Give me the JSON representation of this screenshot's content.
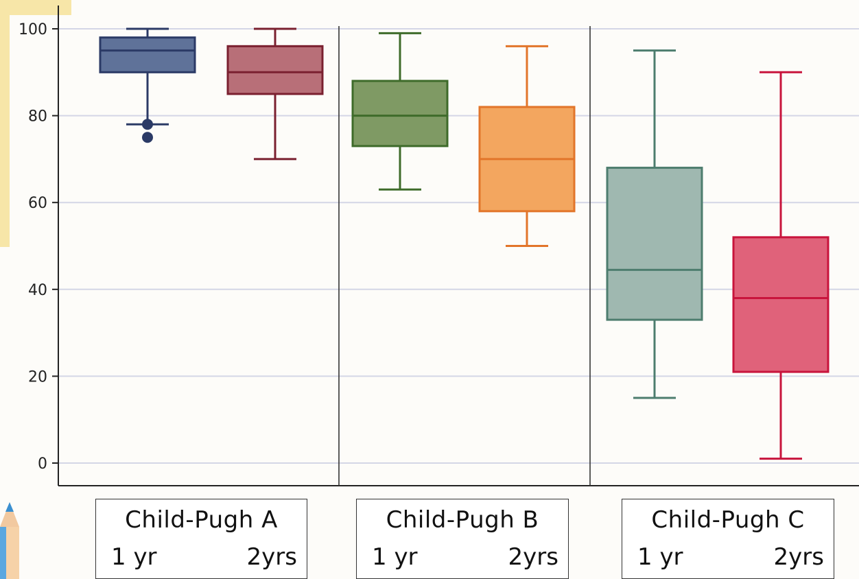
{
  "chart_data": {
    "type": "box",
    "ylim": [
      -5,
      105
    ],
    "yticks": [
      0,
      20,
      40,
      60,
      80,
      100
    ],
    "grid": true,
    "groups": [
      {
        "name": "Child-Pugh A",
        "sub_labels": [
          "1 yr",
          "2yrs"
        ]
      },
      {
        "name": "Child-Pugh B",
        "sub_labels": [
          "1 yr",
          "2yrs"
        ]
      },
      {
        "name": "Child-Pugh C",
        "sub_labels": [
          "1 yr",
          "2yrs"
        ]
      }
    ],
    "series": [
      {
        "group": "Child-Pugh A",
        "label": "1 yr",
        "whisker_low": 78,
        "q1": 90,
        "median": 95,
        "q3": 98,
        "whisker_high": 100,
        "outliers": [
          78,
          75
        ],
        "fill": "#5f7299",
        "stroke": "#2b3a66"
      },
      {
        "group": "Child-Pugh A",
        "label": "2yrs",
        "whisker_low": 70,
        "q1": 85,
        "median": 90,
        "q3": 96,
        "whisker_high": 100,
        "outliers": [],
        "fill": "#b86f78",
        "stroke": "#7a2030"
      },
      {
        "group": "Child-Pugh B",
        "label": "1 yr",
        "whisker_low": 63,
        "q1": 73,
        "median": 80,
        "q3": 88,
        "whisker_high": 99,
        "outliers": [],
        "fill": "#7f9a64",
        "stroke": "#3e6b2a"
      },
      {
        "group": "Child-Pugh B",
        "label": "2yrs",
        "whisker_low": 50,
        "q1": 58,
        "median": 70,
        "q3": 82,
        "whisker_high": 96,
        "outliers": [],
        "fill": "#f3a65f",
        "stroke": "#e2752a"
      },
      {
        "group": "Child-Pugh C",
        "label": "1 yr",
        "whisker_low": 15,
        "q1": 33,
        "median": 44.5,
        "q3": 68,
        "whisker_high": 95,
        "outliers": [],
        "fill": "#9fb8b0",
        "stroke": "#4d7d6e"
      },
      {
        "group": "Child-Pugh C",
        "label": "2yrs",
        "whisker_low": 1,
        "q1": 21,
        "median": 38,
        "q3": 52,
        "whisker_high": 90,
        "outliers": [],
        "fill": "#e0627a",
        "stroke": "#c8143c"
      }
    ]
  }
}
